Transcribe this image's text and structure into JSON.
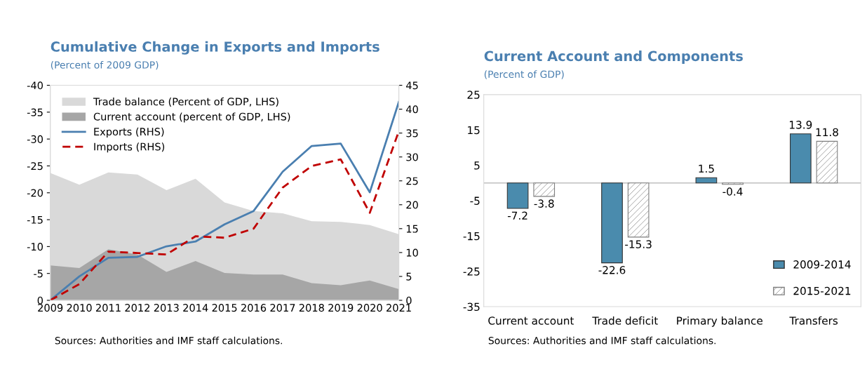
{
  "chart_data": [
    {
      "type": "line",
      "title": "Cumulative Change in Exports and Imports",
      "subtitle": "(Percent of 2009 GDP)",
      "categories": [
        "2009",
        "2010",
        "2011",
        "2012",
        "2013",
        "2014",
        "2015",
        "2016",
        "2017",
        "2018",
        "2019",
        "2020",
        "2021"
      ],
      "series": [
        {
          "name": "Trade balance (Percent of GDP, LHS)",
          "type": "area",
          "color": "#d9d9d9",
          "values": [
            -23.7,
            -21.5,
            -23.8,
            -23.4,
            -20.5,
            -22.6,
            -18.2,
            -16.6,
            -16.2,
            -14.7,
            -14.6,
            -14.0,
            -12.3
          ]
        },
        {
          "name": "Current account (percent of GDP, LHS)",
          "type": "area",
          "color": "#a6a6a6",
          "values": [
            -6.5,
            -6.0,
            -9.5,
            -8.5,
            -5.3,
            -7.3,
            -5.1,
            -4.8,
            -4.8,
            -3.2,
            -2.8,
            -3.7,
            -2.1
          ]
        },
        {
          "name": "Exports (RHS)",
          "type": "line",
          "axis": "y2",
          "color": "#4a7fb0",
          "line_style": "solid",
          "values": [
            0,
            5.0,
            8.9,
            9.1,
            11.3,
            12.3,
            15.9,
            18.7,
            26.9,
            32.3,
            32.8,
            22.6,
            41.5
          ]
        },
        {
          "name": "Imports (RHS)",
          "type": "line",
          "axis": "y2",
          "color": "#c00000",
          "line_style": "dashed",
          "values": [
            0,
            3.4,
            10.2,
            9.9,
            9.6,
            13.4,
            13.1,
            15.0,
            23.6,
            28.1,
            29.5,
            18.3,
            35.4
          ]
        }
      ],
      "ylim": [
        0,
        -40
      ],
      "yticks": [
        0,
        -5,
        -10,
        -15,
        -20,
        -25,
        -30,
        -35,
        -40
      ],
      "y2lim": [
        0,
        45
      ],
      "y2ticks": [
        0,
        5,
        10,
        15,
        20,
        25,
        30,
        35,
        40,
        45
      ],
      "legend": "top left",
      "grid": false,
      "annotations": [
        "Sources: Authorities and IMF staff calculations."
      ]
    },
    {
      "type": "bar",
      "title": "Current Account and Components",
      "subtitle": "(Percent of GDP)",
      "categories": [
        "Current account",
        "Trade deficit",
        "Primary balance",
        "Transfers"
      ],
      "series": [
        {
          "name": "2009-2014",
          "color": "#4a8bad",
          "values": [
            -7.2,
            -22.6,
            1.5,
            13.9
          ]
        },
        {
          "name": "2015-2021",
          "color": "#7f7f7f",
          "values": [
            -3.8,
            -15.3,
            -0.4,
            11.8
          ]
        }
      ],
      "ylim": [
        -35,
        25
      ],
      "yticks": [
        -35,
        -25,
        -15,
        -5,
        5,
        15,
        25
      ],
      "data_labels": true,
      "legend": "bottom right",
      "grid": false,
      "annotations": [
        "Sources: Authorities and IMF staff calculations."
      ]
    }
  ]
}
